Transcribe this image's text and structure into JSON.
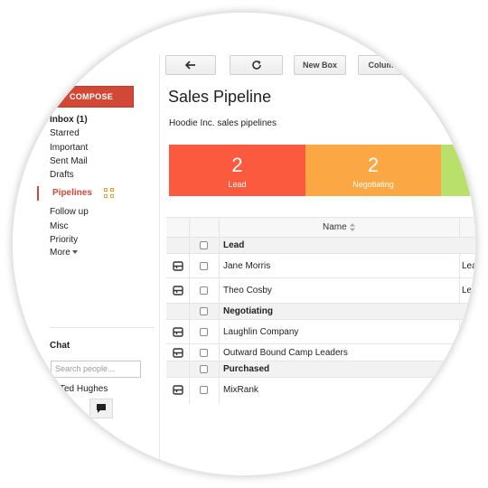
{
  "toolbar": {
    "back_label": "",
    "refresh_label": "",
    "new_box_label": "New Box",
    "columns_label": "Column..."
  },
  "sidebar": {
    "compose_label": "COMPOSE",
    "items": [
      {
        "label": "Inbox (1)"
      },
      {
        "label": "Starred"
      },
      {
        "label": "Important"
      },
      {
        "label": "Sent Mail"
      },
      {
        "label": "Drafts"
      },
      {
        "label": "Pipelines"
      },
      {
        "label": "Follow up"
      },
      {
        "label": "Misc"
      },
      {
        "label": "Priority"
      },
      {
        "label": "More"
      }
    ],
    "chat_title": "Chat",
    "chat_search_placeholder": "Search people...",
    "contact_name": "Ted Hughes"
  },
  "main": {
    "title": "Sales Pipeline",
    "subtitle": "Hoodie Inc. sales pipelines",
    "stages": [
      {
        "count": "2",
        "label": "Lead",
        "color": "#fc5a3e"
      },
      {
        "count": "2",
        "label": "Negotiating",
        "color": "#fba743"
      },
      {
        "count": "",
        "label": "",
        "color": "#b8e06a"
      }
    ],
    "table": {
      "name_header": "Name",
      "rows": [
        {
          "type": "group",
          "name": "Lead"
        },
        {
          "type": "item",
          "name": "Jane Morris",
          "extra": "Lea"
        },
        {
          "type": "item",
          "name": "Theo Cosby",
          "extra": "Le"
        },
        {
          "type": "group",
          "name": "Negotiating"
        },
        {
          "type": "item",
          "name": "Laughlin Company",
          "extra": ""
        },
        {
          "type": "item",
          "name": "Outward Bound Camp Leaders",
          "extra": ""
        },
        {
          "type": "group",
          "name": "Purchased"
        },
        {
          "type": "item",
          "name": "MixRank",
          "extra": ""
        }
      ]
    }
  }
}
